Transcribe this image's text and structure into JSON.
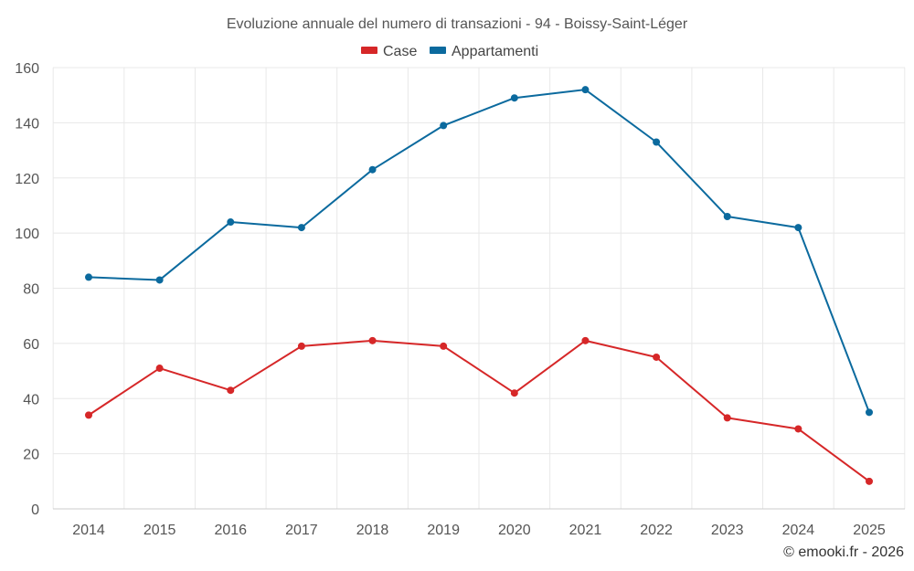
{
  "chart_data": {
    "type": "line",
    "title": "Evoluzione annuale del numero di transazioni - 94 - Boissy-Saint-Léger",
    "categories": [
      "2014",
      "2015",
      "2016",
      "2017",
      "2018",
      "2019",
      "2020",
      "2021",
      "2022",
      "2023",
      "2024",
      "2025"
    ],
    "series": [
      {
        "name": "Case",
        "color": "#d62728",
        "values": [
          34,
          51,
          43,
          59,
          61,
          59,
          42,
          61,
          55,
          33,
          29,
          10
        ]
      },
      {
        "name": "Appartamenti",
        "color": "#0b6a9e",
        "values": [
          84,
          83,
          104,
          102,
          123,
          139,
          149,
          152,
          133,
          106,
          102,
          35
        ]
      }
    ],
    "ylim": [
      0,
      160
    ],
    "yticks": [
      "0",
      "20",
      "40",
      "60",
      "80",
      "100",
      "120",
      "140",
      "160"
    ],
    "grid": true,
    "legend": "top-center",
    "xlabel": "",
    "ylabel": ""
  },
  "credit": "© emooki.fr - 2026"
}
